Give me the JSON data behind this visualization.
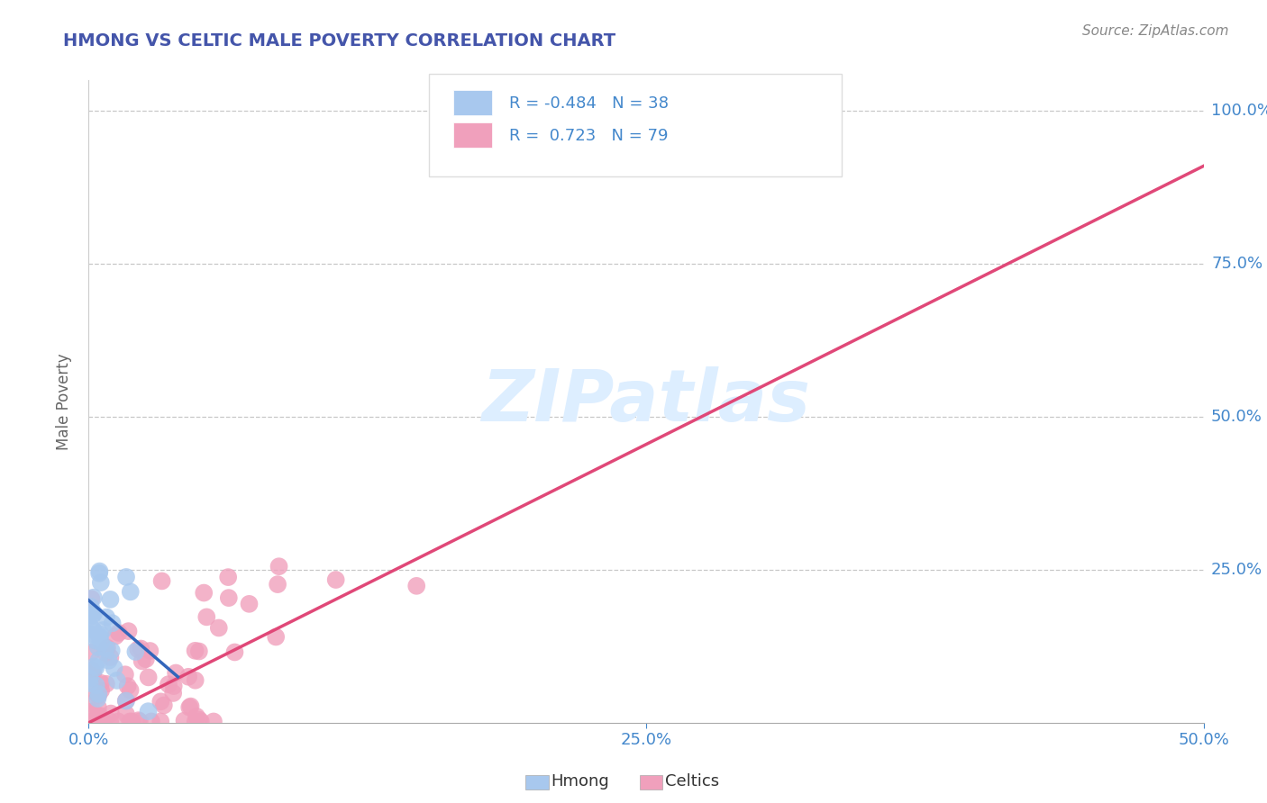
{
  "title": "HMONG VS CELTIC MALE POVERTY CORRELATION CHART",
  "source": "Source: ZipAtlas.com",
  "ylabel": "Male Poverty",
  "xlim": [
    0.0,
    0.5
  ],
  "ylim": [
    0.0,
    1.05
  ],
  "grid_color": "#c8c8c8",
  "background_color": "#ffffff",
  "hmong_color": "#a8c8ee",
  "celtic_color": "#f0a0bc",
  "hmong_line_color": "#3366bb",
  "celtic_line_color": "#e04878",
  "hmong_R": -0.484,
  "hmong_N": 38,
  "celtic_R": 0.723,
  "celtic_N": 79,
  "title_color": "#4455aa",
  "axis_color": "#4488cc",
  "source_color": "#888888",
  "ylabel_color": "#666666",
  "watermark_color": "#ddeeff",
  "celtic_line": [
    [
      0.0,
      0.0
    ],
    [
      0.5,
      0.91
    ]
  ],
  "hmong_line": [
    [
      0.0,
      0.2
    ],
    [
      0.04,
      0.075
    ]
  ]
}
